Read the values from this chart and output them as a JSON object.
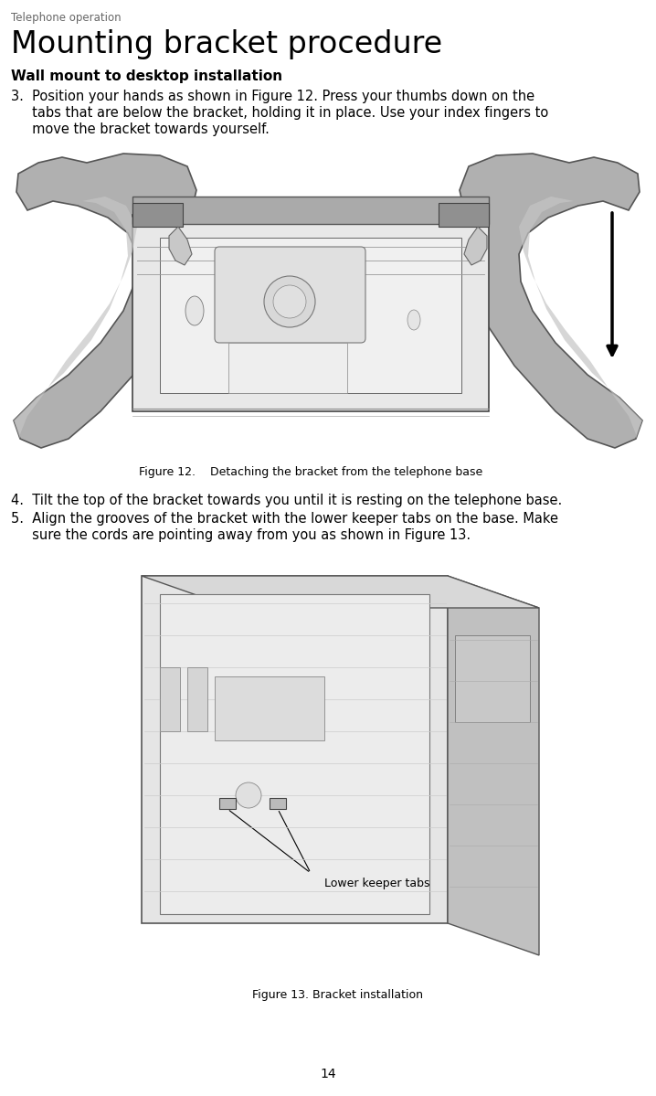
{
  "header_text": "Telephone operation",
  "title_text": "Mounting bracket procedure",
  "subtitle_text": "Wall mount to desktop installation",
  "step3_line1": "3.  Position your hands as shown in Figure 12. Press your thumbs down on the",
  "step3_line2": "     tabs that are below the bracket, holding it in place. Use your index fingers to",
  "step3_line3": "     move the bracket towards yourself.",
  "step4_text": "4.  Tilt the top of the bracket towards you until it is resting on the telephone base.",
  "step5_line1": "5.  Align the grooves of the bracket with the lower keeper tabs on the base. Make",
  "step5_line2": "     sure the cords are pointing away from you as shown in Figure 13.",
  "fig12_caption": "Figure 12.    Detaching the bracket from the telephone base",
  "fig13_caption": "Figure 13. Bracket installation",
  "lower_keeper_label": "Lower keeper tabs",
  "page_number": "14",
  "bg_color": "#ffffff",
  "text_color": "#000000",
  "gray_dark": "#555555",
  "gray_mid": "#999999",
  "gray_light": "#cccccc",
  "gray_hand": "#aaaaaa",
  "gray_hand_dark": "#888888"
}
